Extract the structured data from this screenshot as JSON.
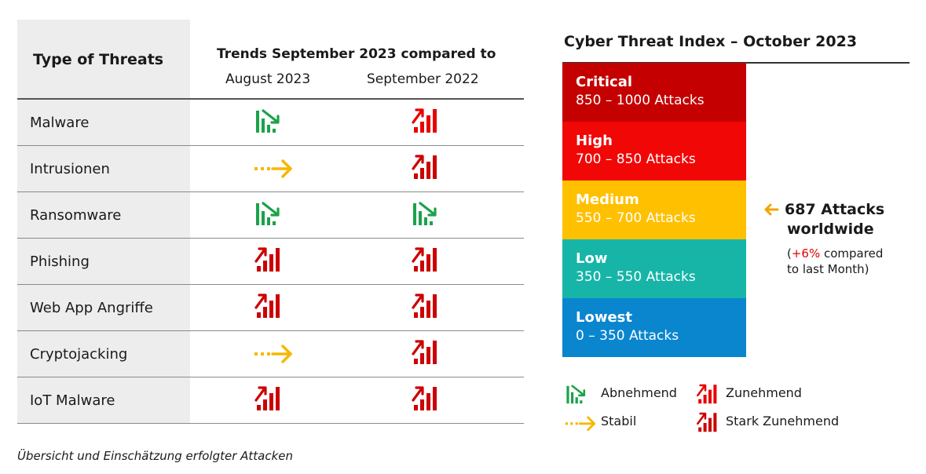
{
  "table": {
    "type_header": "Type of Threats",
    "trend_header": "Trends September 2023 compared to",
    "col1_header": "August 2023",
    "col2_header": "September 2022",
    "rows": [
      {
        "name": "Malware",
        "vs_august": "decreasing",
        "vs_sept": "increasing"
      },
      {
        "name": "Intrusionen",
        "vs_august": "stable",
        "vs_sept": "strongly-increasing"
      },
      {
        "name": "Ransomware",
        "vs_august": "decreasing",
        "vs_sept": "decreasing"
      },
      {
        "name": "Phishing",
        "vs_august": "strongly-increasing",
        "vs_sept": "strongly-increasing"
      },
      {
        "name": "Web App Angriffe",
        "vs_august": "strongly-increasing",
        "vs_sept": "strongly-increasing"
      },
      {
        "name": "Cryptojacking",
        "vs_august": "stable",
        "vs_sept": "strongly-increasing"
      },
      {
        "name": "IoT Malware",
        "vs_august": "strongly-increasing",
        "vs_sept": "strongly-increasing"
      }
    ]
  },
  "index": {
    "title": "Cyber Threat Index – October 2023",
    "levels": [
      {
        "name": "Critical",
        "range": "850 – 1000 Attacks",
        "color": "#c40000"
      },
      {
        "name": "High",
        "range": "700 – 850 Attacks",
        "color": "#f20707"
      },
      {
        "name": "Medium",
        "range": "550 – 700 Attacks",
        "color": "#ffc000"
      },
      {
        "name": "Low",
        "range": "350 – 550 Attacks",
        "color": "#17b5a7"
      },
      {
        "name": "Lowest",
        "range": "0 – 350 Attacks",
        "color": "#0a86cf"
      }
    ],
    "current_value": "687 Attacks",
    "current_label": "worldwide",
    "change_open": "(",
    "change_pct": "+6%",
    "change_rest": " compared",
    "change_line2": "to last Month)"
  },
  "legend": {
    "decreasing": "Abnehmend",
    "increasing": "Zunehmend",
    "stable": "Stabil",
    "strongly_increasing": "Stark Zunehmend"
  },
  "caption": "Übersicht und Einschätzung erfolgter Attacken",
  "colors": {
    "green": "#1aa34a",
    "red": "#e80000",
    "amber": "#f5b800",
    "arrow_orange": "#f0a500"
  }
}
